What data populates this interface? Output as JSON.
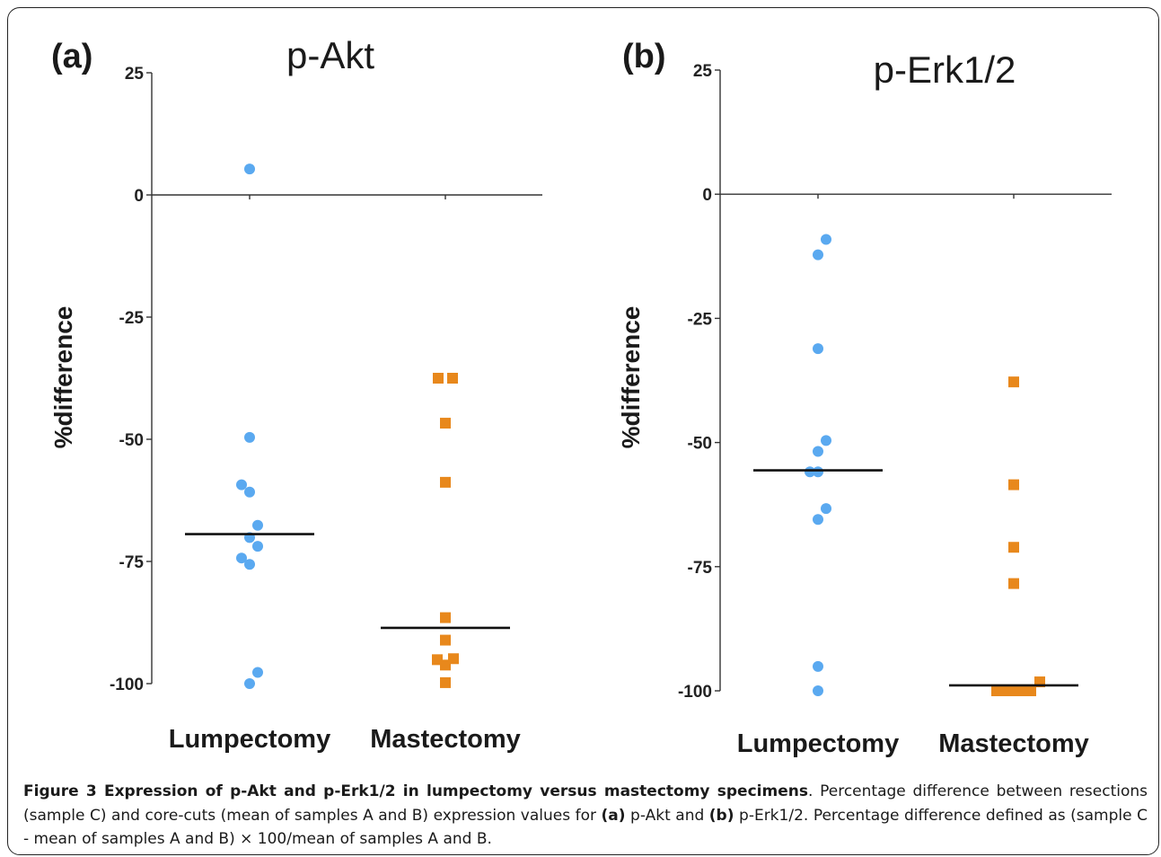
{
  "chart_data": [
    {
      "type": "scatter",
      "panel_label": "(a)",
      "title": "p-Akt",
      "ylabel": "%difference",
      "categories": [
        "Lumpectomy",
        "Mastectomy"
      ],
      "ylim": [
        -100,
        25
      ],
      "yticks": [
        25,
        0,
        -25,
        -50,
        -75,
        -100
      ],
      "series": [
        {
          "category": "Lumpectomy",
          "marker": "circle",
          "color": "#5aa9f0",
          "points": [
            {
              "x": 0,
              "y": 5.3
            },
            {
              "x": 0,
              "y": -49.6
            },
            {
              "x": -0.09,
              "y": -59.3
            },
            {
              "x": 0,
              "y": -60.8
            },
            {
              "x": 0.09,
              "y": -67.6
            },
            {
              "x": 0,
              "y": -70.1
            },
            {
              "x": 0.09,
              "y": -71.9
            },
            {
              "x": -0.09,
              "y": -74.3
            },
            {
              "x": 0,
              "y": -75.6
            },
            {
              "x": 0.09,
              "y": -97.7
            },
            {
              "x": 0,
              "y": -100
            }
          ],
          "median": -69.4
        },
        {
          "category": "Mastectomy",
          "marker": "square",
          "color": "#e8881c",
          "points": [
            {
              "x": -0.08,
              "y": -37.5
            },
            {
              "x": 0.08,
              "y": -37.5
            },
            {
              "x": 0,
              "y": -46.7
            },
            {
              "x": 0,
              "y": -58.8
            },
            {
              "x": 0,
              "y": -86.5
            },
            {
              "x": 0,
              "y": -91.1
            },
            {
              "x": -0.09,
              "y": -95.1
            },
            {
              "x": 0.09,
              "y": -94.9
            },
            {
              "x": 0,
              "y": -96.2
            },
            {
              "x": 0,
              "y": -99.8
            }
          ],
          "median": -88.6
        }
      ]
    },
    {
      "type": "scatter",
      "panel_label": "(b)",
      "title": "p-Erk1/2",
      "ylabel": "%difference",
      "categories": [
        "Lumpectomy",
        "Mastectomy"
      ],
      "ylim": [
        -100,
        25
      ],
      "yticks": [
        25,
        0,
        -25,
        -50,
        -75,
        -100
      ],
      "series": [
        {
          "category": "Lumpectomy",
          "marker": "circle",
          "color": "#5aa9f0",
          "points": [
            {
              "x": 0.09,
              "y": -9.1
            },
            {
              "x": 0,
              "y": -12.2
            },
            {
              "x": 0,
              "y": -31.1
            },
            {
              "x": 0.09,
              "y": -49.6
            },
            {
              "x": 0,
              "y": -51.8
            },
            {
              "x": -0.09,
              "y": -55.9
            },
            {
              "x": 0,
              "y": -55.9
            },
            {
              "x": 0.09,
              "y": -63.3
            },
            {
              "x": 0,
              "y": -65.5
            },
            {
              "x": 0,
              "y": -95.1
            },
            {
              "x": 0,
              "y": -100
            }
          ],
          "median": -55.6
        },
        {
          "category": "Mastectomy",
          "marker": "square",
          "color": "#e8881c",
          "points": [
            {
              "x": 0,
              "y": -37.8
            },
            {
              "x": 0,
              "y": -58.5
            },
            {
              "x": 0,
              "y": -71.1
            },
            {
              "x": 0,
              "y": -78.4
            },
            {
              "x": 0.29,
              "y": -98.2
            },
            {
              "x": -0.19,
              "y": -100
            },
            {
              "x": -0.1,
              "y": -100
            },
            {
              "x": 0,
              "y": -100
            },
            {
              "x": 0.1,
              "y": -100
            },
            {
              "x": 0.19,
              "y": -100
            }
          ],
          "median": -98.9
        }
      ]
    }
  ],
  "caption": {
    "bold_lead": "Figure 3 Expression of p-Akt and p-Erk1/2 in lumpectomy versus mastectomy specimens",
    "text1": ". Percentage difference between resections (sample C) and core-cuts (mean of samples A and B) expression values for ",
    "ref_a": "(a)",
    "text2": " p-Akt and ",
    "ref_b": "(b)",
    "text3": " p-Erk1/2. Percentage difference defined as (sample C - mean of samples A and B) × 100/mean of samples A and B."
  }
}
